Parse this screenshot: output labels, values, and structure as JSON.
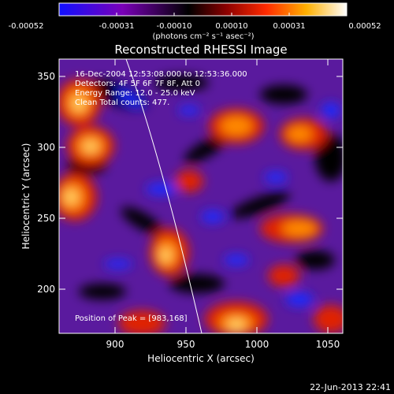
{
  "colorbar": {
    "ticks": [
      "-0.00052",
      "-0.00031",
      "-0.00010",
      "0.00010",
      "0.00031",
      "0.00052"
    ],
    "unit_label": "(photons cm⁻² s⁻¹ asec⁻²)",
    "stops": [
      "#1010ff",
      "#7a00b8",
      "#000000",
      "#8a0000",
      "#ff2a00",
      "#ffb000",
      "#ffffff"
    ]
  },
  "plot": {
    "title": "Reconstructed RHESSI Image",
    "xlabel": "Heliocentric X (arcsec)",
    "ylabel": "Heliocentric Y (arcsec)",
    "xticks": [
      "900",
      "950",
      "1000",
      "1050"
    ],
    "yticks": [
      "200",
      "250",
      "300",
      "350"
    ],
    "xlim": [
      862,
      1052
    ],
    "ylim": [
      170,
      362
    ]
  },
  "annotations": {
    "time_range": "16-Dec-2004 12:53:08.000 to 12:53:36.000",
    "detectors": "Detectors: 4F 5F 6F 7F 8F, Att 0",
    "energy": "Energy Range: 12.0 - 25.0 keV",
    "clean": "Clean    Total counts: 477.",
    "peak": "Position of Peak = [983,168]"
  },
  "footer_timestamp": "22-Jun-2013 22:41"
}
